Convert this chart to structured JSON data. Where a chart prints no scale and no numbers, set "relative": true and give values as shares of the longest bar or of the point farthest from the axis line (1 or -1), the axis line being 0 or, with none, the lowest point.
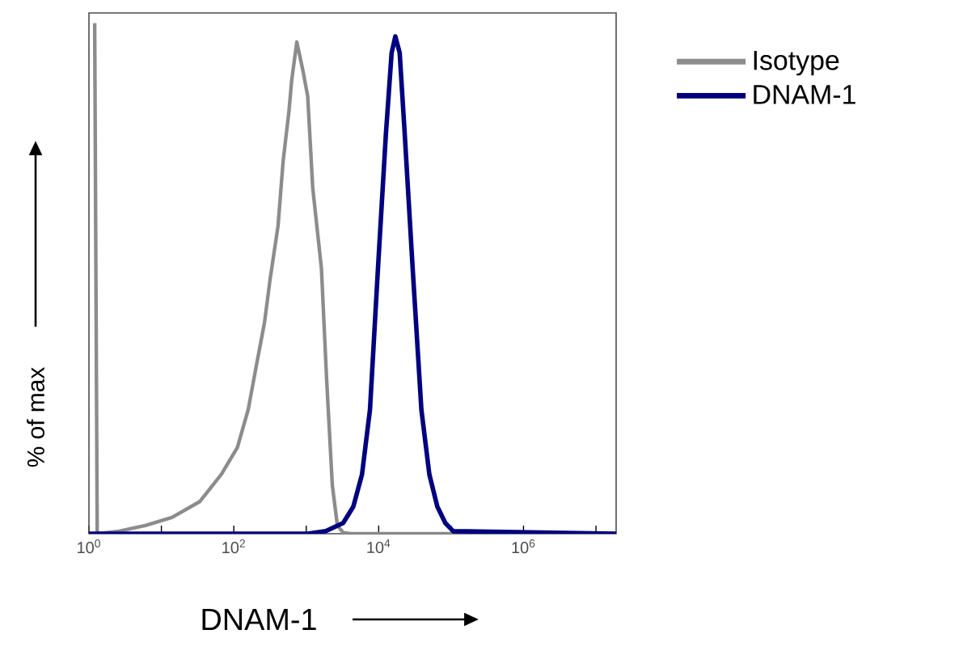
{
  "chart_data": {
    "type": "line",
    "relative": true,
    "log": "x",
    "xlabel": "DNAM-1",
    "ylabel": "% of max",
    "legend": "top right",
    "xlim": [
      1,
      19000000
    ],
    "xticks": [
      {
        "value": 1,
        "label": "10$^{0}$"
      },
      {
        "value": 10,
        "label": null
      },
      {
        "value": 100,
        "label": "10$^{2}$"
      },
      {
        "value": 1000,
        "label": null
      },
      {
        "value": 10000,
        "label": "10$^{4}$"
      },
      {
        "value": 100000,
        "label": null
      },
      {
        "value": 1000000,
        "label": "10$^{6}$"
      },
      {
        "value": 10000000,
        "label": null
      }
    ],
    "series": [
      {
        "name": "Isotype",
        "color": "#8c8c8c",
        "x": [
          1.2,
          1.3,
          2.6,
          6,
          14,
          34,
          67,
          112,
          158,
          204,
          265,
          316,
          408,
          480,
          575,
          631,
          741,
          891,
          1047,
          1230,
          1622,
          1905,
          2291,
          2692,
          3236,
          4169,
          13800,
          19000000
        ],
        "values": [
          1,
          0,
          0.005,
          0.016,
          0.032,
          0.063,
          0.116,
          0.169,
          0.243,
          0.328,
          0.413,
          0.497,
          0.603,
          0.73,
          0.825,
          0.889,
          0.963,
          0.91,
          0.857,
          0.677,
          0.519,
          0.307,
          0.095,
          0.016,
          0.002,
          0,
          0,
          0
        ]
      },
      {
        "name": "DNAM-1",
        "color": "#000080",
        "x": [
          1,
          1047,
          1862,
          3236,
          4467,
          5888,
          7586,
          9772,
          12590,
          15100,
          16980,
          19500,
          22900,
          29500,
          38900,
          50100,
          64600,
          83200,
          107000,
          19000000
        ],
        "values": [
          0,
          0,
          0.005,
          0.021,
          0.053,
          0.116,
          0.243,
          0.519,
          0.783,
          0.942,
          0.974,
          0.942,
          0.783,
          0.519,
          0.243,
          0.116,
          0.053,
          0.021,
          0.005,
          0
        ]
      }
    ]
  }
}
